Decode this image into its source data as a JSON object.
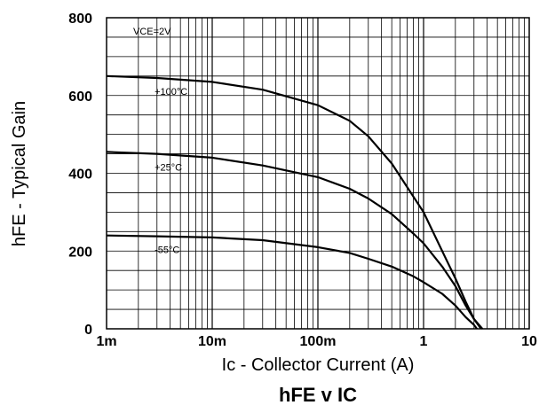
{
  "chart_data": {
    "type": "line",
    "title": "hFE v IC",
    "xlabel": "Ic - Collector Current (A)",
    "ylabel": "hFE - Typical Gain",
    "xscale": "log",
    "xlim": [
      0.001,
      10
    ],
    "ylim": [
      0,
      800
    ],
    "grid": true,
    "x_tick_labels": [
      "1m",
      "10m",
      "100m",
      "1",
      "10"
    ],
    "y_tick_labels": [
      "0",
      "200",
      "400",
      "600",
      "800"
    ],
    "annotations": [
      "VCE=2V"
    ],
    "series": [
      {
        "name": "+100°C",
        "x": [
          0.001,
          0.003,
          0.01,
          0.03,
          0.1,
          0.2,
          0.3,
          0.5,
          0.8,
          1.0,
          1.5,
          2.0,
          2.5,
          3.0,
          3.6
        ],
        "y": [
          650,
          645,
          635,
          615,
          575,
          535,
          495,
          425,
          340,
          300,
          200,
          130,
          70,
          25,
          0
        ]
      },
      {
        "name": "+25°C",
        "x": [
          0.001,
          0.003,
          0.01,
          0.03,
          0.1,
          0.2,
          0.3,
          0.5,
          0.8,
          1.0,
          1.5,
          2.0,
          2.5,
          3.0,
          3.5
        ],
        "y": [
          455,
          450,
          440,
          420,
          390,
          360,
          335,
          295,
          245,
          220,
          160,
          110,
          60,
          25,
          0
        ]
      },
      {
        "name": "-55°C",
        "x": [
          0.001,
          0.003,
          0.01,
          0.03,
          0.1,
          0.2,
          0.3,
          0.5,
          0.8,
          1.0,
          1.5,
          2.0,
          2.5,
          3.0,
          3.2
        ],
        "y": [
          240,
          238,
          235,
          228,
          210,
          195,
          180,
          160,
          135,
          120,
          90,
          60,
          30,
          10,
          0
        ]
      }
    ]
  }
}
